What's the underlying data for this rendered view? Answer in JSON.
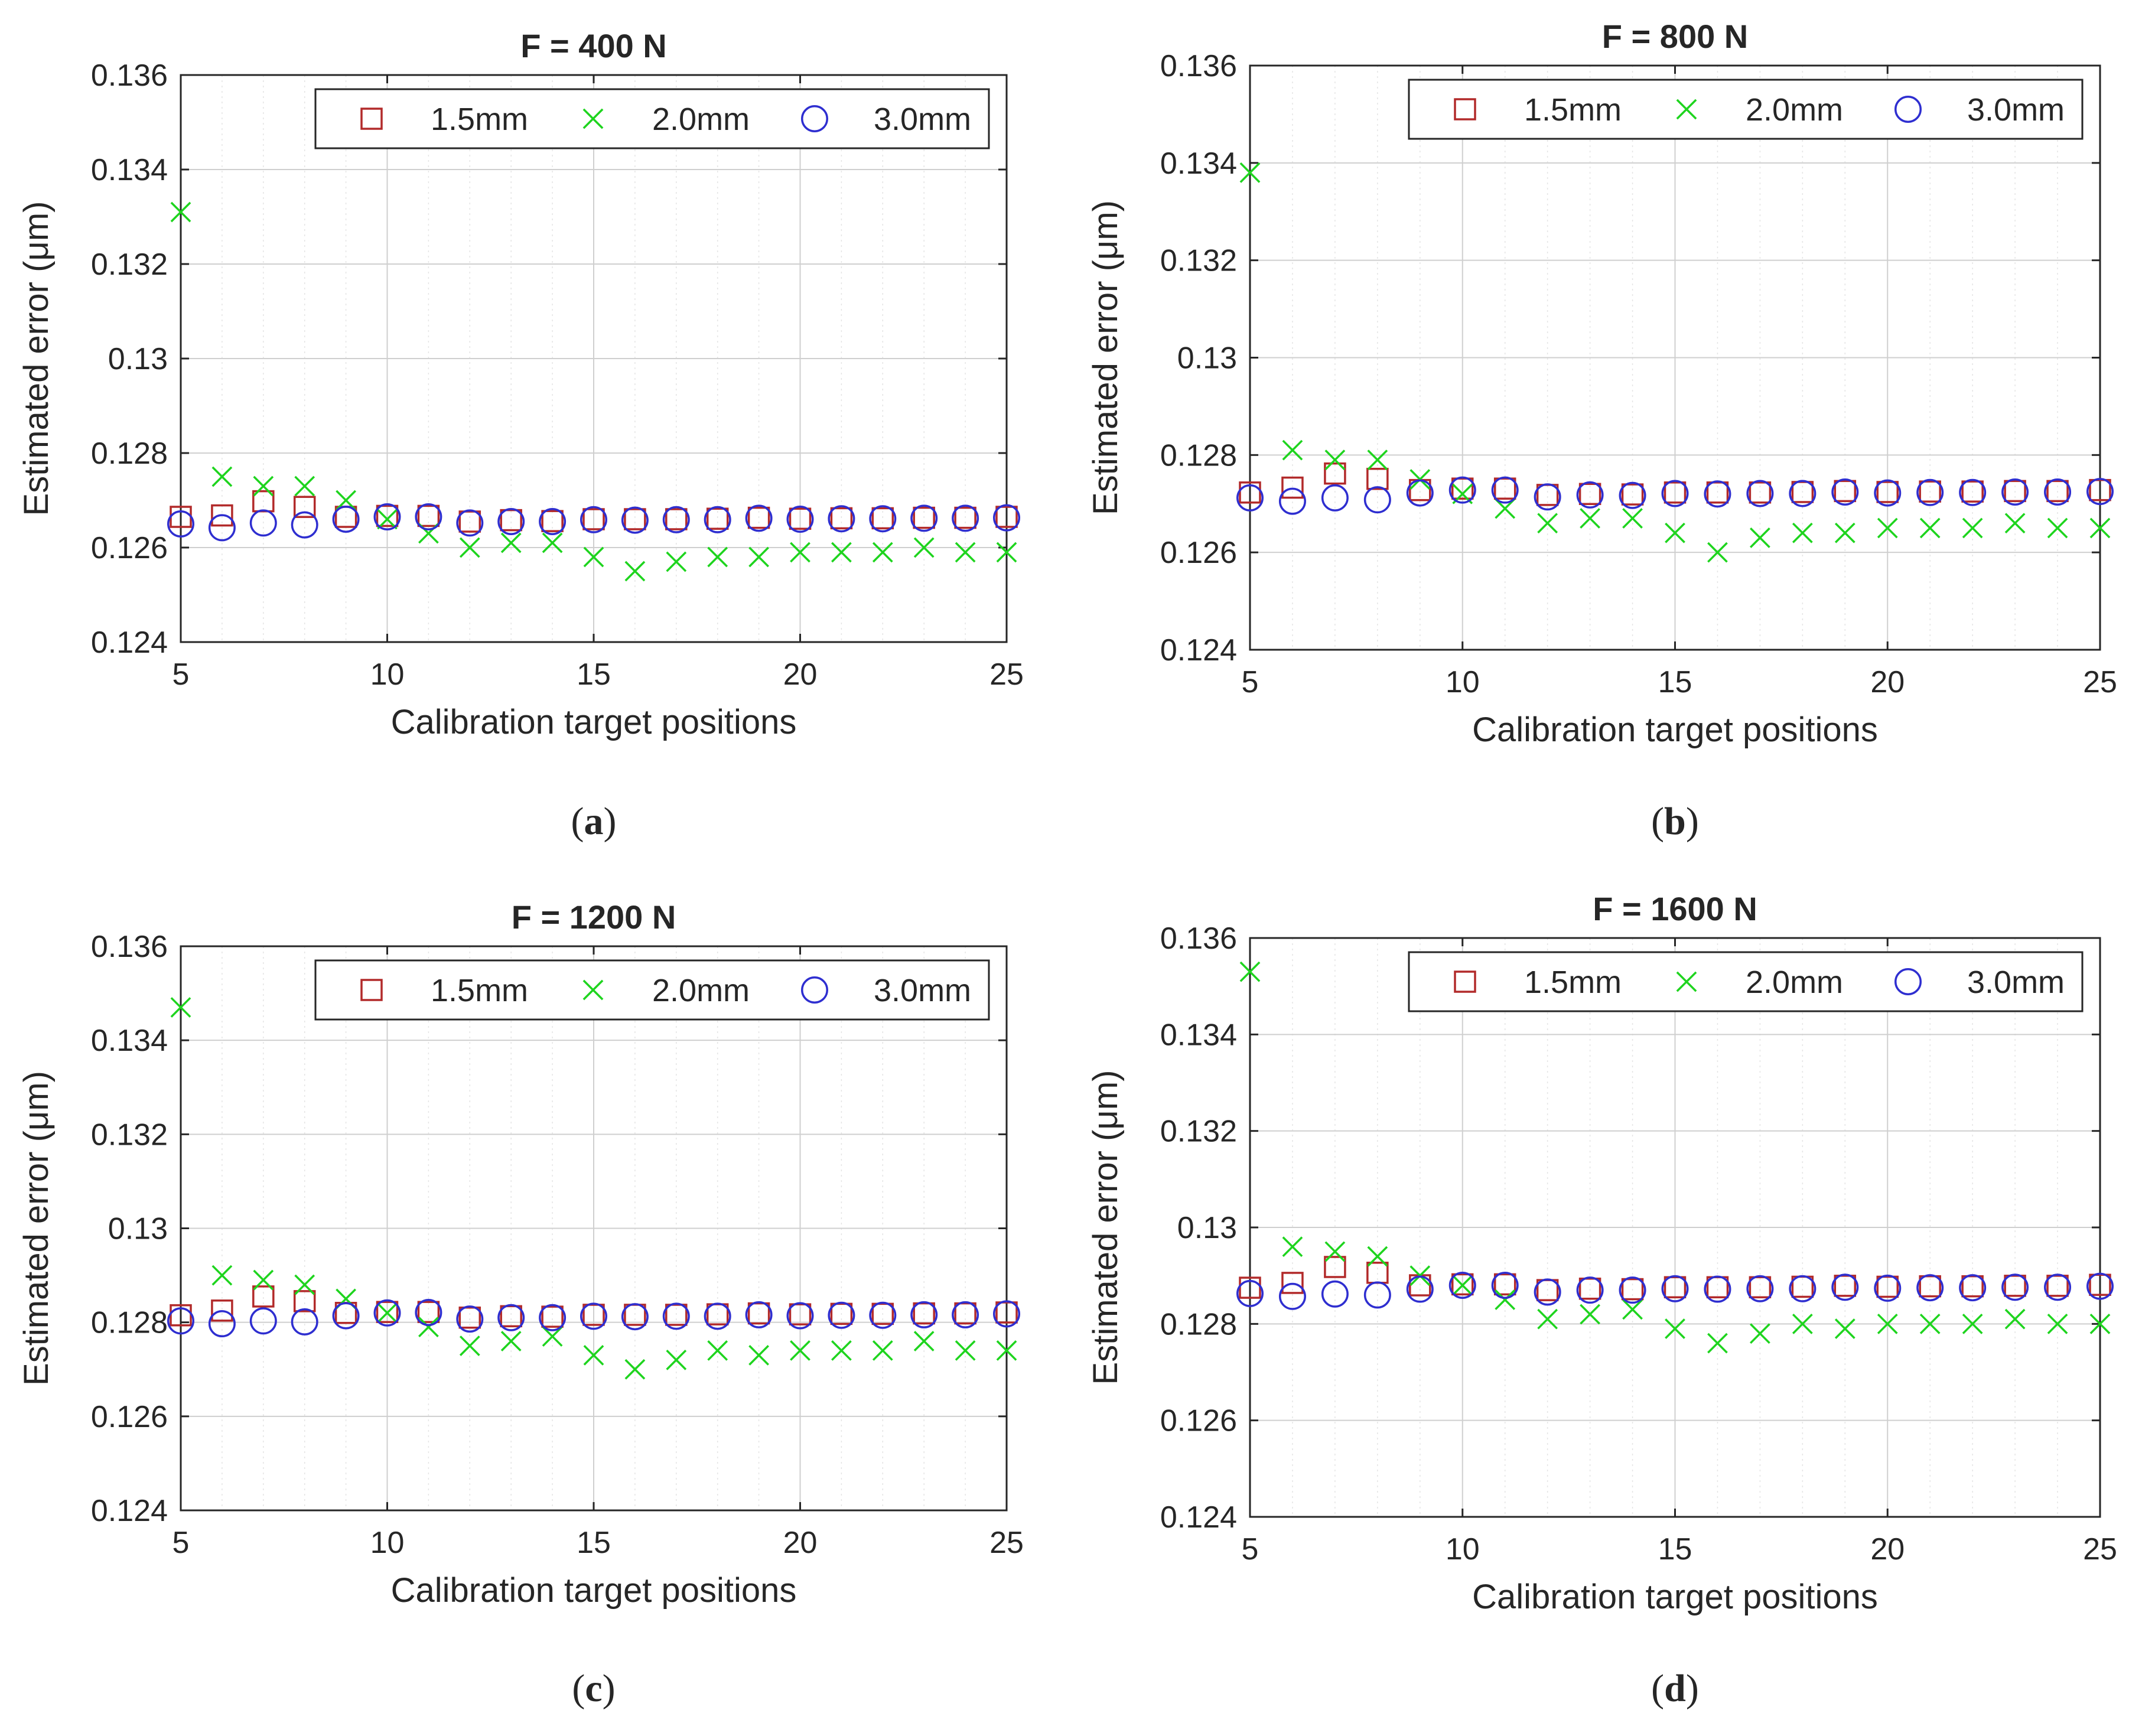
{
  "colors": {
    "series_1_5": "#b22a2a",
    "series_2_0": "#1ed41e",
    "series_3_0": "#2e2ed0",
    "grid": "#cccccc",
    "axis": "#262626"
  },
  "chart_data": [
    {
      "type": "scatter",
      "panel_label": "a",
      "title": "F = 400 N",
      "xlabel": "Calibration target positions",
      "ylabel": "Estimated error (μm)",
      "xlim": [
        5,
        25
      ],
      "ylim": [
        0.124,
        0.136
      ],
      "xticks": [
        5,
        10,
        15,
        20,
        25
      ],
      "yticks": [
        0.124,
        0.126,
        0.128,
        0.13,
        0.132,
        0.134,
        0.136
      ],
      "ytick_labels": [
        "0.124",
        "0.126",
        "0.128",
        "0.13",
        "0.132",
        "0.134",
        "0.136"
      ],
      "grid": true,
      "legend": "top-right",
      "x": [
        5,
        6,
        7,
        8,
        9,
        10,
        11,
        12,
        13,
        14,
        15,
        16,
        17,
        18,
        19,
        20,
        21,
        22,
        23,
        24,
        25
      ],
      "series": [
        {
          "name": "1.5mm",
          "marker": "square",
          "values": [
            0.12665,
            0.12668,
            0.12698,
            0.12686,
            0.12665,
            0.12667,
            0.12667,
            0.12655,
            0.12658,
            0.12656,
            0.1266,
            0.1266,
            0.1266,
            0.12661,
            0.12663,
            0.12661,
            0.12662,
            0.12662,
            0.12663,
            0.12663,
            0.12665
          ]
        },
        {
          "name": "2.0mm",
          "marker": "x",
          "values": [
            0.1331,
            0.1275,
            0.1273,
            0.1273,
            0.127,
            0.1266,
            0.1263,
            0.126,
            0.1261,
            0.1261,
            0.1258,
            0.1255,
            0.1257,
            0.1258,
            0.1258,
            0.1259,
            0.1259,
            0.1259,
            0.126,
            0.1259,
            0.1259
          ]
        },
        {
          "name": "3.0mm",
          "marker": "circle",
          "values": [
            0.1265,
            0.12642,
            0.12652,
            0.12648,
            0.1266,
            0.12665,
            0.12665,
            0.12652,
            0.12655,
            0.12655,
            0.12659,
            0.12658,
            0.12659,
            0.12659,
            0.12662,
            0.1266,
            0.12661,
            0.12661,
            0.12662,
            0.12662,
            0.12663
          ]
        }
      ]
    },
    {
      "type": "scatter",
      "panel_label": "b",
      "title": "F = 800 N",
      "xlabel": "Calibration target positions",
      "ylabel": "Estimated error (μm)",
      "xlim": [
        5,
        25
      ],
      "ylim": [
        0.124,
        0.136
      ],
      "xticks": [
        5,
        10,
        15,
        20,
        25
      ],
      "yticks": [
        0.124,
        0.126,
        0.128,
        0.13,
        0.132,
        0.134,
        0.136
      ],
      "ytick_labels": [
        "0.124",
        "0.126",
        "0.128",
        "0.13",
        "0.132",
        "0.134",
        "0.136"
      ],
      "grid": true,
      "legend": "top-right",
      "x": [
        5,
        6,
        7,
        8,
        9,
        10,
        11,
        12,
        13,
        14,
        15,
        16,
        17,
        18,
        19,
        20,
        21,
        22,
        23,
        24,
        25
      ],
      "series": [
        {
          "name": "1.5mm",
          "marker": "square",
          "values": [
            0.12723,
            0.12733,
            0.12762,
            0.12751,
            0.12728,
            0.12731,
            0.12731,
            0.12718,
            0.1272,
            0.12719,
            0.12723,
            0.12723,
            0.12723,
            0.12724,
            0.12726,
            0.12724,
            0.12725,
            0.12725,
            0.12726,
            0.12726,
            0.12728
          ]
        },
        {
          "name": "2.0mm",
          "marker": "x",
          "values": [
            0.1338,
            0.1281,
            0.1279,
            0.1279,
            0.1275,
            0.1272,
            0.1269,
            0.1266,
            0.1267,
            0.1267,
            0.1264,
            0.126,
            0.1263,
            0.1264,
            0.1264,
            0.1265,
            0.1265,
            0.1265,
            0.1266,
            0.1265,
            0.1265
          ]
        },
        {
          "name": "3.0mm",
          "marker": "circle",
          "values": [
            0.12712,
            0.12705,
            0.12712,
            0.12708,
            0.12722,
            0.12728,
            0.12728,
            0.12714,
            0.12718,
            0.12717,
            0.12721,
            0.1272,
            0.12721,
            0.12721,
            0.12724,
            0.12722,
            0.12723,
            0.12723,
            0.12724,
            0.12724,
            0.12725
          ]
        }
      ]
    },
    {
      "type": "scatter",
      "panel_label": "c",
      "title": "F = 1200 N",
      "xlabel": "Calibration target positions",
      "ylabel": "Estimated error (μm)",
      "xlim": [
        5,
        25
      ],
      "ylim": [
        0.124,
        0.136
      ],
      "xticks": [
        5,
        10,
        15,
        20,
        25
      ],
      "yticks": [
        0.124,
        0.126,
        0.128,
        0.13,
        0.132,
        0.134,
        0.136
      ],
      "ytick_labels": [
        "0.124",
        "0.126",
        "0.128",
        "0.13",
        "0.132",
        "0.134",
        "0.136"
      ],
      "grid": true,
      "legend": "top-right",
      "x": [
        5,
        6,
        7,
        8,
        9,
        10,
        11,
        12,
        13,
        14,
        15,
        16,
        17,
        18,
        19,
        20,
        21,
        22,
        23,
        24,
        25
      ],
      "series": [
        {
          "name": "1.5mm",
          "marker": "square",
          "values": [
            0.12815,
            0.12825,
            0.12855,
            0.12845,
            0.1282,
            0.12822,
            0.12822,
            0.1281,
            0.12813,
            0.12812,
            0.12816,
            0.12816,
            0.12816,
            0.12817,
            0.12819,
            0.12817,
            0.12818,
            0.12818,
            0.12819,
            0.12819,
            0.12821
          ]
        },
        {
          "name": "2.0mm",
          "marker": "x",
          "values": [
            0.1347,
            0.129,
            0.1289,
            0.1288,
            0.1285,
            0.1282,
            0.1279,
            0.1275,
            0.1276,
            0.1277,
            0.1273,
            0.127,
            0.1272,
            0.1274,
            0.1273,
            0.1274,
            0.1274,
            0.1274,
            0.1276,
            0.1274,
            0.1274
          ]
        },
        {
          "name": "3.0mm",
          "marker": "circle",
          "values": [
            0.12803,
            0.12797,
            0.12803,
            0.12801,
            0.12814,
            0.1282,
            0.12821,
            0.12807,
            0.1281,
            0.1281,
            0.12813,
            0.12812,
            0.12813,
            0.12813,
            0.12816,
            0.12814,
            0.12815,
            0.12815,
            0.12816,
            0.12816,
            0.12818
          ]
        }
      ]
    },
    {
      "type": "scatter",
      "panel_label": "d",
      "title": "F = 1600 N",
      "xlabel": "Calibration target positions",
      "ylabel": "Estimated error (μm)",
      "xlim": [
        5,
        25
      ],
      "ylim": [
        0.124,
        0.136
      ],
      "xticks": [
        5,
        10,
        15,
        20,
        25
      ],
      "yticks": [
        0.124,
        0.126,
        0.128,
        0.13,
        0.132,
        0.134,
        0.136
      ],
      "ytick_labels": [
        "0.124",
        "0.126",
        "0.128",
        "0.13",
        "0.132",
        "0.134",
        "0.136"
      ],
      "grid": true,
      "legend": "top-right",
      "x": [
        5,
        6,
        7,
        8,
        9,
        10,
        11,
        12,
        13,
        14,
        15,
        16,
        17,
        18,
        19,
        20,
        21,
        22,
        23,
        24,
        25
      ],
      "series": [
        {
          "name": "1.5mm",
          "marker": "square",
          "values": [
            0.12875,
            0.12885,
            0.12918,
            0.12906,
            0.1288,
            0.12882,
            0.12882,
            0.1287,
            0.12873,
            0.12872,
            0.12876,
            0.12876,
            0.12876,
            0.12877,
            0.12879,
            0.12877,
            0.12878,
            0.12878,
            0.12879,
            0.12879,
            0.12881
          ]
        },
        {
          "name": "2.0mm",
          "marker": "x",
          "values": [
            0.1353,
            0.1296,
            0.1295,
            0.1294,
            0.129,
            0.1288,
            0.1285,
            0.1281,
            0.1282,
            0.1283,
            0.1279,
            0.1276,
            0.1278,
            0.128,
            0.1279,
            0.128,
            0.128,
            0.128,
            0.1281,
            0.128,
            0.128
          ]
        },
        {
          "name": "3.0mm",
          "marker": "circle",
          "values": [
            0.12863,
            0.12857,
            0.12862,
            0.1286,
            0.12872,
            0.1288,
            0.1288,
            0.12866,
            0.1287,
            0.1287,
            0.12873,
            0.12872,
            0.12873,
            0.12873,
            0.12876,
            0.12874,
            0.12875,
            0.12875,
            0.12876,
            0.12876,
            0.12878
          ]
        }
      ]
    }
  ]
}
